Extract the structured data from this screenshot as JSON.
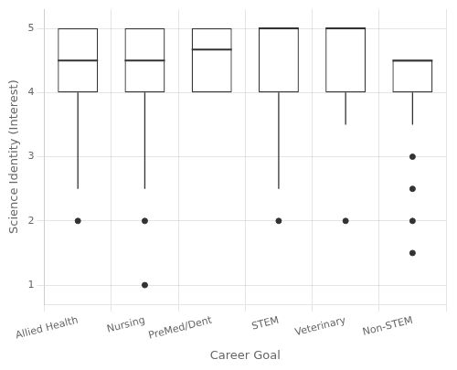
{
  "chart_data": {
    "type": "box",
    "categories": [
      "Allied Health",
      "Nursing",
      "PreMed/Dent",
      "STEM",
      "Veterinary",
      "Non-STEM"
    ],
    "boxes": [
      {
        "q1": 4.0,
        "median": 4.5,
        "q3": 5.0,
        "whisker_low": 2.5,
        "whisker_high": 5.0,
        "outliers": [
          2.0
        ]
      },
      {
        "q1": 4.0,
        "median": 4.5,
        "q3": 5.0,
        "whisker_low": 2.5,
        "whisker_high": 5.0,
        "outliers": [
          1.0,
          2.0
        ]
      },
      {
        "q1": 4.0,
        "median": 4.67,
        "q3": 5.0,
        "whisker_low": 4.0,
        "whisker_high": 5.0,
        "outliers": []
      },
      {
        "q1": 4.0,
        "median": 5.0,
        "q3": 5.0,
        "whisker_low": 2.5,
        "whisker_high": 5.0,
        "outliers": [
          2.0
        ]
      },
      {
        "q1": 4.0,
        "median": 5.0,
        "q3": 5.0,
        "whisker_low": 3.5,
        "whisker_high": 5.0,
        "outliers": [
          2.0
        ]
      },
      {
        "q1": 4.0,
        "median": 4.5,
        "q3": 4.5,
        "whisker_low": 3.5,
        "whisker_high": 4.5,
        "outliers": [
          1.5,
          2.0,
          2.5,
          3.0
        ]
      }
    ],
    "xlabel": "Career Goal",
    "ylabel": "Science Identity (Interest)",
    "ylim": [
      0.7,
      5.3
    ],
    "yticks": [
      1,
      2,
      3,
      4,
      5
    ],
    "grid": true,
    "color": "#333333"
  }
}
